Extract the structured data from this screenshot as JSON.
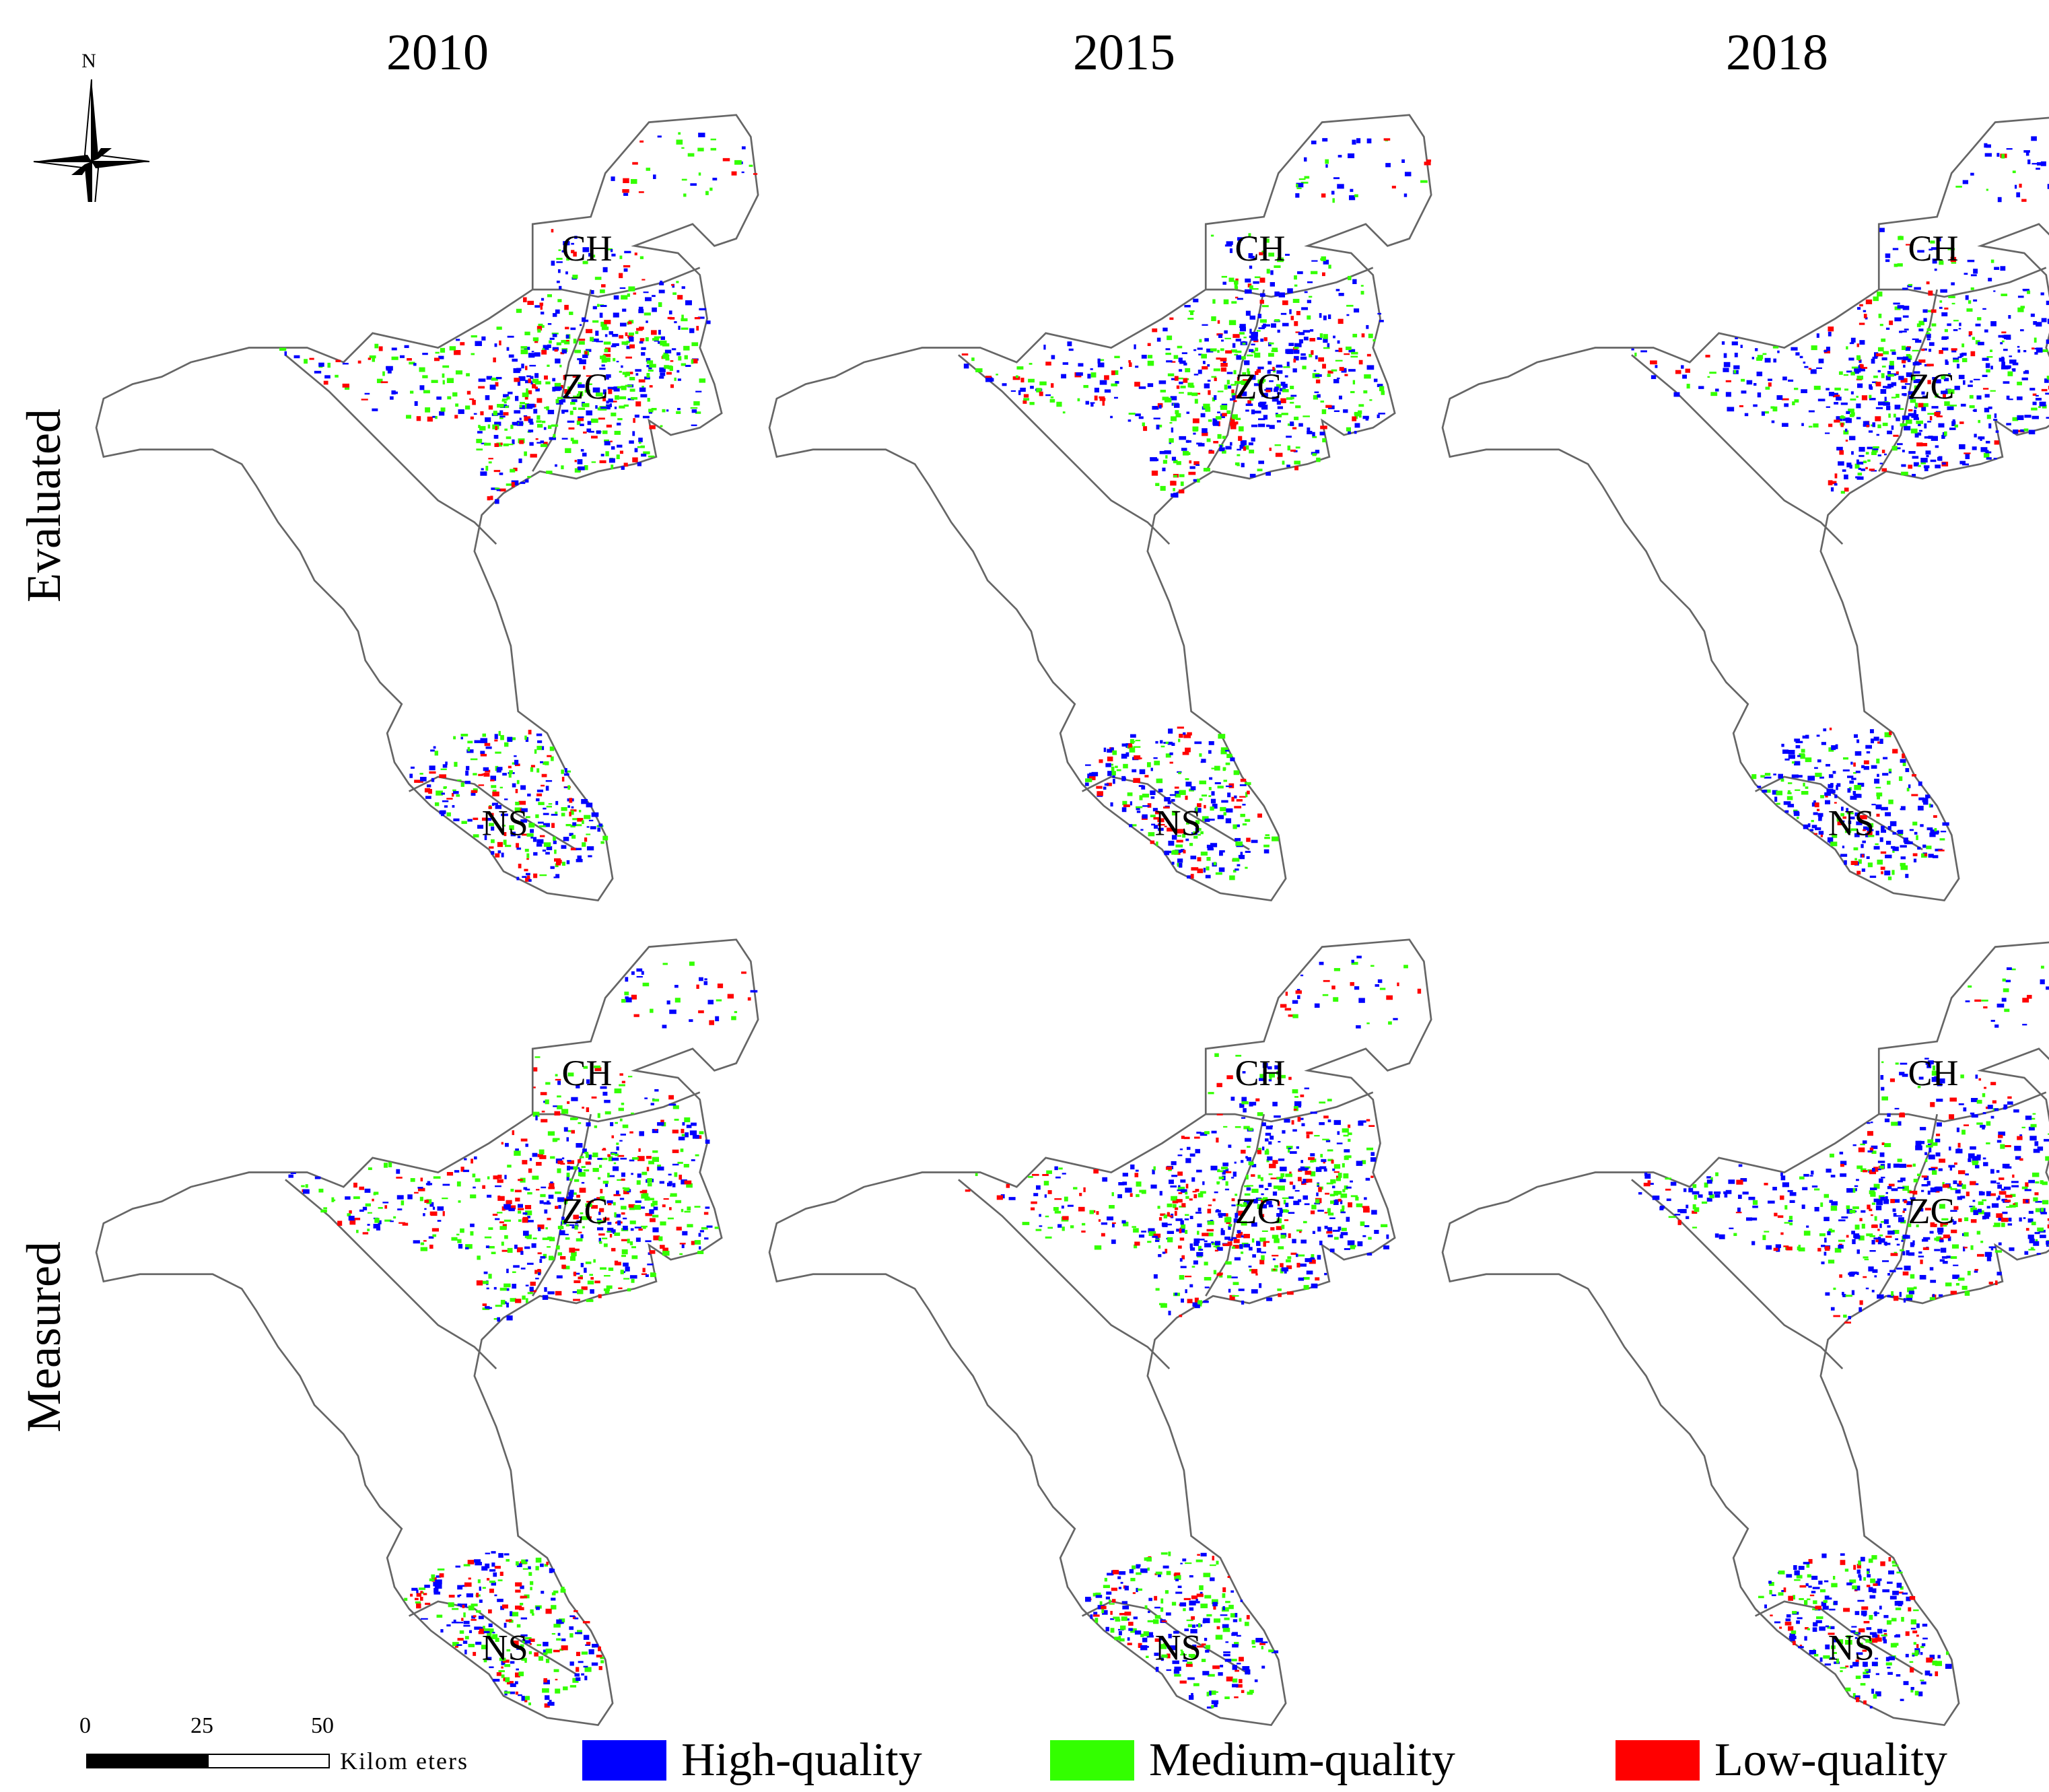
{
  "compass": {
    "north_label": "N"
  },
  "columns": [
    "2010",
    "2015",
    "2018"
  ],
  "rows": [
    "Evaluated",
    "Measured"
  ],
  "region_labels": {
    "ch": "CH",
    "zc": "ZC",
    "ns": "NS"
  },
  "colors": {
    "high": "#0000ff",
    "medium": "#33ff00",
    "low": "#ff0000",
    "boundary": "#666666"
  },
  "panels": [
    {
      "row": "Evaluated",
      "year": "2010",
      "seed": 11,
      "mix": [
        0.42,
        0.38,
        0.2
      ]
    },
    {
      "row": "Evaluated",
      "year": "2015",
      "seed": 23,
      "mix": [
        0.48,
        0.34,
        0.18
      ]
    },
    {
      "row": "Evaluated",
      "year": "2018",
      "seed": 37,
      "mix": [
        0.62,
        0.24,
        0.14
      ]
    },
    {
      "row": "Measured",
      "year": "2010",
      "seed": 41,
      "mix": [
        0.38,
        0.37,
        0.25
      ]
    },
    {
      "row": "Measured",
      "year": "2015",
      "seed": 53,
      "mix": [
        0.4,
        0.36,
        0.24
      ]
    },
    {
      "row": "Measured",
      "year": "2018",
      "seed": 67,
      "mix": [
        0.56,
        0.26,
        0.18
      ]
    }
  ],
  "scale_bar": {
    "ticks": [
      "0",
      "25",
      "50"
    ],
    "unit": "Kilom eters"
  },
  "legend": [
    {
      "key": "high",
      "label": "High-quality"
    },
    {
      "key": "medium",
      "label": "Medium-quality"
    },
    {
      "key": "low",
      "label": "Low-quality"
    }
  ]
}
